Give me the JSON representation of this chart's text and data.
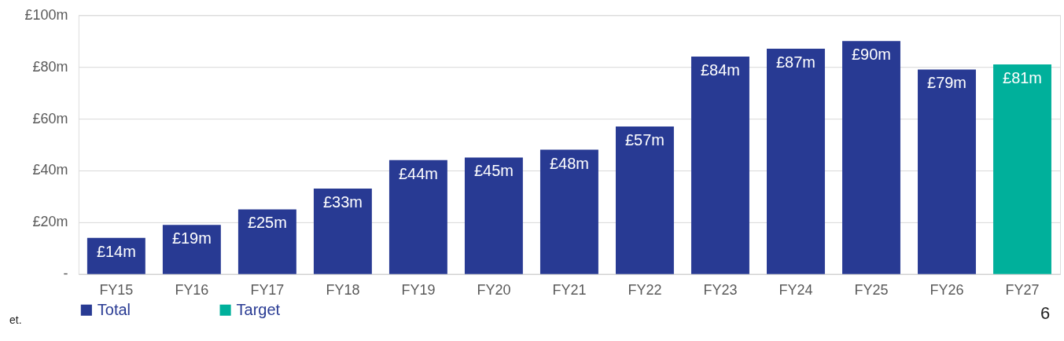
{
  "chart_data": {
    "type": "bar",
    "categories": [
      "FY15",
      "FY16",
      "FY17",
      "FY18",
      "FY19",
      "FY20",
      "FY21",
      "FY22",
      "FY23",
      "FY24",
      "FY25",
      "FY26",
      "FY27"
    ],
    "series": [
      {
        "name": "Total",
        "color": "#283a93",
        "values": [
          14,
          19,
          25,
          33,
          44,
          45,
          48,
          57,
          84,
          87,
          90,
          79,
          null
        ],
        "value_labels": [
          "£14m",
          "£19m",
          "£25m",
          "£33m",
          "£44m",
          "£45m",
          "£48m",
          "£57m",
          "£84m",
          "£87m",
          "£90m",
          "£79m",
          null
        ]
      },
      {
        "name": "Target",
        "color": "#00b09b",
        "values": [
          null,
          null,
          null,
          null,
          null,
          null,
          null,
          null,
          null,
          null,
          null,
          null,
          81
        ],
        "value_labels": [
          null,
          null,
          null,
          null,
          null,
          null,
          null,
          null,
          null,
          null,
          null,
          null,
          "£81m"
        ]
      }
    ],
    "ylim": [
      0,
      100
    ],
    "yticks": [
      {
        "value": 0,
        "label": "-"
      },
      {
        "value": 20,
        "label": "£20m"
      },
      {
        "value": 40,
        "label": "£40m"
      },
      {
        "value": 60,
        "label": "£60m"
      },
      {
        "value": 80,
        "label": "£80m"
      },
      {
        "value": 100,
        "label": "£100m"
      }
    ],
    "grid": "y",
    "legend": "bottom",
    "annotations": [
      "et.",
      "6"
    ]
  }
}
